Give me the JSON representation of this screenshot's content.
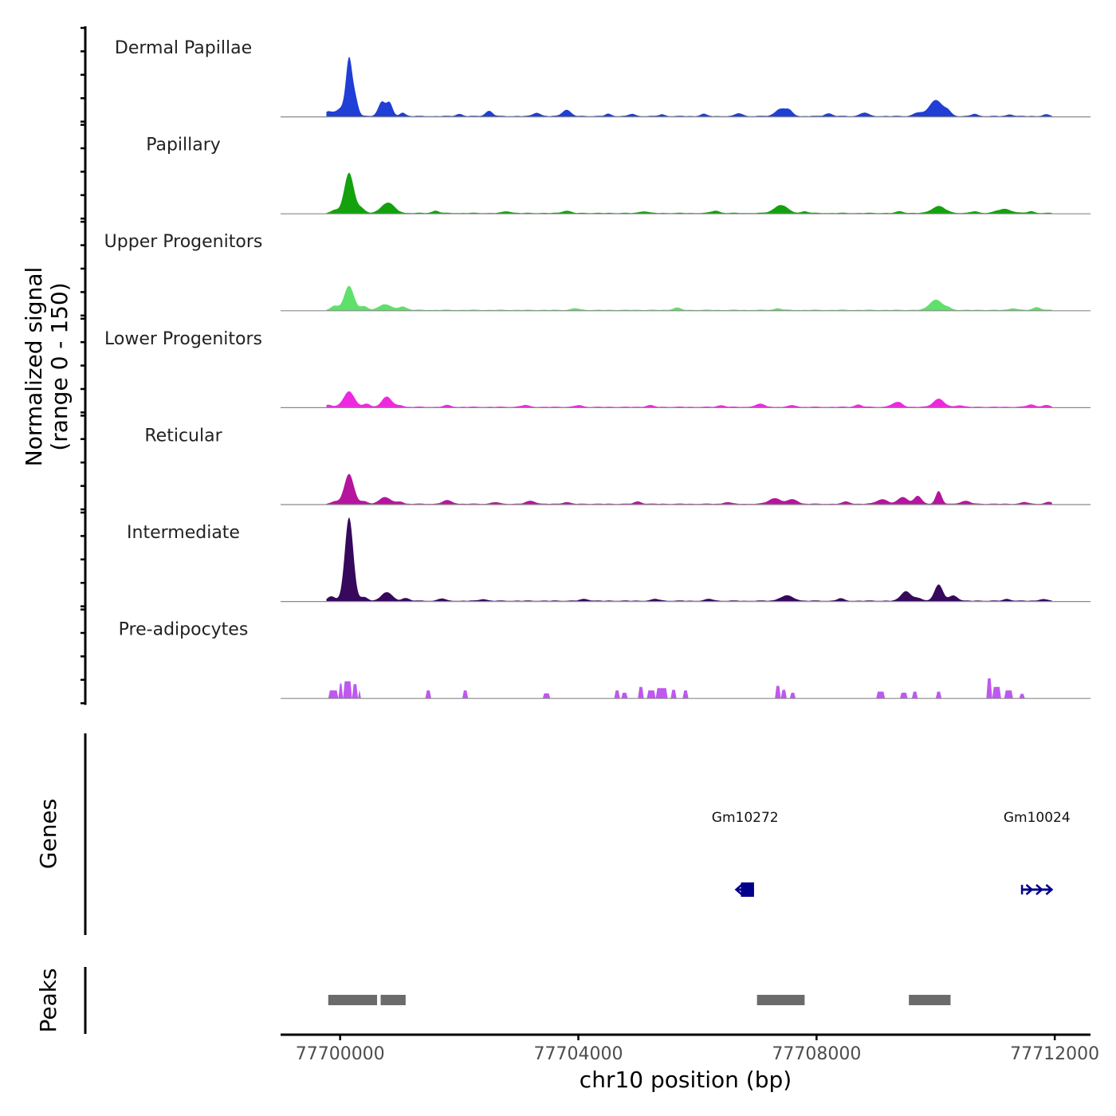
{
  "chart_data": {
    "type": "area",
    "title": "",
    "xlabel": "chr10 position (bp)",
    "ylabel_line1": "Normalized signal",
    "ylabel_line2": "(range 0 - 150)",
    "xlim": [
      77699000,
      77712600
    ],
    "x_ticks": [
      77700000,
      77704000,
      77708000,
      77712000
    ],
    "x_tick_labels": [
      "77700000",
      "77704000",
      "77708000",
      "77712000"
    ],
    "signal_ylim": [
      0,
      150
    ],
    "tracks": [
      {
        "name": "Dermal Papillae",
        "color": "#1f3fd6",
        "peaks": [
          [
            77699800,
            8,
            70
          ],
          [
            77700050,
            15,
            100
          ],
          [
            77700150,
            90,
            50
          ],
          [
            77700250,
            30,
            50
          ],
          [
            77700700,
            25,
            60
          ],
          [
            77700830,
            22,
            50
          ],
          [
            77701050,
            6,
            50
          ],
          [
            77702000,
            4,
            50
          ],
          [
            77702500,
            9,
            60
          ],
          [
            77703300,
            6,
            60
          ],
          [
            77703800,
            11,
            70
          ],
          [
            77704500,
            4,
            50
          ],
          [
            77704900,
            4,
            50
          ],
          [
            77705400,
            3,
            50
          ],
          [
            77706100,
            4,
            50
          ],
          [
            77706700,
            5,
            60
          ],
          [
            77707400,
            13,
            90
          ],
          [
            77707550,
            8,
            60
          ],
          [
            77708200,
            5,
            60
          ],
          [
            77708800,
            6,
            70
          ],
          [
            77709700,
            6,
            70
          ],
          [
            77710000,
            28,
            110
          ],
          [
            77710200,
            8,
            60
          ],
          [
            77710650,
            4,
            50
          ],
          [
            77711250,
            3,
            50
          ],
          [
            77711850,
            3,
            50
          ]
        ]
      },
      {
        "name": "Papillary",
        "color": "#13a10e",
        "peaks": [
          [
            77699900,
            5,
            60
          ],
          [
            77700150,
            70,
            80
          ],
          [
            77700350,
            8,
            60
          ],
          [
            77700800,
            18,
            110
          ],
          [
            77701600,
            4,
            60
          ],
          [
            77702800,
            3,
            70
          ],
          [
            77703800,
            4,
            70
          ],
          [
            77705100,
            3,
            70
          ],
          [
            77706300,
            4,
            70
          ],
          [
            77707400,
            14,
            110
          ],
          [
            77707800,
            3,
            60
          ],
          [
            77709400,
            3,
            60
          ],
          [
            77710050,
            12,
            110
          ],
          [
            77710650,
            3,
            60
          ],
          [
            77711150,
            7,
            120
          ],
          [
            77711600,
            3,
            60
          ]
        ]
      },
      {
        "name": "Upper Progenitors",
        "color": "#5fe06a",
        "peaks": [
          [
            77699900,
            7,
            60
          ],
          [
            77700150,
            42,
            80
          ],
          [
            77700400,
            6,
            60
          ],
          [
            77700750,
            10,
            100
          ],
          [
            77701050,
            6,
            70
          ],
          [
            77703950,
            3,
            60
          ],
          [
            77705650,
            4,
            60
          ],
          [
            77707350,
            3,
            60
          ],
          [
            77710000,
            18,
            100
          ],
          [
            77710200,
            4,
            60
          ],
          [
            77711300,
            3,
            60
          ],
          [
            77711700,
            5,
            60
          ]
        ]
      },
      {
        "name": "Lower Progenitors",
        "color": "#ee28e0",
        "peaks": [
          [
            77699800,
            4,
            60
          ],
          [
            77700150,
            27,
            90
          ],
          [
            77700450,
            5,
            60
          ],
          [
            77700780,
            18,
            80
          ],
          [
            77701000,
            3,
            60
          ],
          [
            77701800,
            3,
            60
          ],
          [
            77703100,
            3,
            70
          ],
          [
            77704000,
            3,
            60
          ],
          [
            77705200,
            3,
            60
          ],
          [
            77706400,
            3,
            60
          ],
          [
            77707050,
            5,
            80
          ],
          [
            77707600,
            3,
            60
          ],
          [
            77708700,
            4,
            60
          ],
          [
            77709300,
            5,
            70
          ],
          [
            77709400,
            6,
            60
          ],
          [
            77710050,
            14,
            90
          ],
          [
            77710400,
            3,
            60
          ],
          [
            77711600,
            4,
            70
          ],
          [
            77711850,
            3,
            60
          ]
        ]
      },
      {
        "name": "Reticular",
        "color": "#b5149e",
        "peaks": [
          [
            77699900,
            4,
            60
          ],
          [
            77700150,
            52,
            80
          ],
          [
            77700400,
            4,
            60
          ],
          [
            77700750,
            12,
            90
          ],
          [
            77701000,
            4,
            60
          ],
          [
            77701800,
            6,
            80
          ],
          [
            77702600,
            3,
            60
          ],
          [
            77703200,
            5,
            80
          ],
          [
            77703800,
            3,
            60
          ],
          [
            77705000,
            4,
            60
          ],
          [
            77706500,
            3,
            60
          ],
          [
            77707300,
            10,
            100
          ],
          [
            77707600,
            8,
            80
          ],
          [
            77708500,
            4,
            60
          ],
          [
            77709100,
            8,
            90
          ],
          [
            77709450,
            12,
            80
          ],
          [
            77709700,
            14,
            60
          ],
          [
            77710050,
            22,
            50
          ],
          [
            77710500,
            5,
            80
          ],
          [
            77711500,
            3,
            60
          ],
          [
            77711900,
            3,
            60
          ]
        ]
      },
      {
        "name": "Intermediate",
        "color": "#36095c",
        "peaks": [
          [
            77699850,
            8,
            60
          ],
          [
            77700150,
            145,
            70
          ],
          [
            77700400,
            6,
            60
          ],
          [
            77700780,
            15,
            90
          ],
          [
            77701100,
            5,
            60
          ],
          [
            77701700,
            4,
            60
          ],
          [
            77702400,
            3,
            60
          ],
          [
            77704100,
            3,
            70
          ],
          [
            77705300,
            3,
            70
          ],
          [
            77706200,
            3,
            70
          ],
          [
            77707500,
            9,
            110
          ],
          [
            77708400,
            4,
            60
          ],
          [
            77709500,
            17,
            80
          ],
          [
            77709700,
            5,
            60
          ],
          [
            77710050,
            28,
            70
          ],
          [
            77710300,
            9,
            70
          ],
          [
            77711200,
            3,
            60
          ],
          [
            77711800,
            3,
            60
          ]
        ]
      },
      {
        "name": "Pre-adipocytes",
        "color": "#be58ee",
        "blocks": [
          [
            77699800,
            77699970,
            14
          ],
          [
            77699970,
            77700050,
            26
          ],
          [
            77700050,
            77700200,
            30
          ],
          [
            77700200,
            77700300,
            25
          ],
          [
            77700300,
            77700350,
            16
          ],
          [
            77701430,
            77701530,
            14
          ],
          [
            77702050,
            77702150,
            14
          ],
          [
            77703400,
            77703530,
            9
          ],
          [
            77704600,
            77704700,
            14
          ],
          [
            77704720,
            77704830,
            10
          ],
          [
            77705000,
            77705100,
            20
          ],
          [
            77705150,
            77705300,
            14
          ],
          [
            77705300,
            77705500,
            18
          ],
          [
            77705550,
            77705650,
            15
          ],
          [
            77705750,
            77705850,
            14
          ],
          [
            77707300,
            77707400,
            22
          ],
          [
            77707400,
            77707500,
            15
          ],
          [
            77707550,
            77707650,
            10
          ],
          [
            77709000,
            77709150,
            12
          ],
          [
            77709400,
            77709530,
            10
          ],
          [
            77709600,
            77709700,
            12
          ],
          [
            77710000,
            77710100,
            12
          ],
          [
            77710850,
            77710950,
            35
          ],
          [
            77710950,
            77711100,
            20
          ],
          [
            77711150,
            77711300,
            14
          ],
          [
            77711400,
            77711500,
            8
          ]
        ]
      }
    ],
    "genes_label": "Genes",
    "genes": [
      {
        "name": "Gm10272",
        "start": 77706650,
        "end": 77706950,
        "strand": "-"
      },
      {
        "name": "Gm10024",
        "start": 77711450,
        "end": 77711950,
        "strand": "+"
      }
    ],
    "peaks_label": "Peaks",
    "peaks": [
      [
        77699800,
        77700620
      ],
      [
        77700680,
        77701100
      ],
      [
        77707000,
        77707800
      ],
      [
        77709550,
        77710250
      ]
    ],
    "colors": {
      "genes": "#00008b",
      "peaks": "#6b6b6b",
      "axis": "#000000",
      "baseline": "#8a8a8a"
    }
  }
}
